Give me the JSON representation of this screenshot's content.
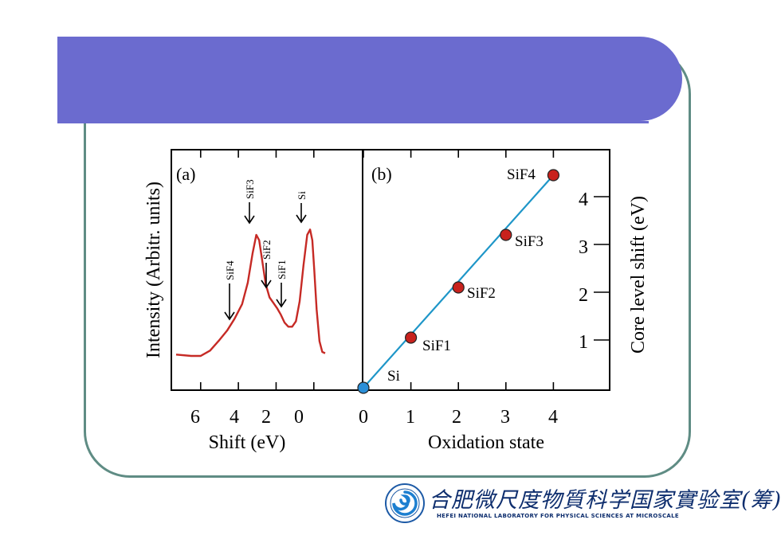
{
  "chart_data": [
    {
      "type": "line",
      "panel_label": "(a)",
      "xlabel": "Shift (eV)",
      "ylabel": "Intensity (Arbitr. units)",
      "xlim": [
        7.3,
        -0.6
      ],
      "x_reversed": true,
      "xticks": [
        "6",
        "4",
        "2",
        "0"
      ],
      "xtick_values": [
        6,
        4,
        2,
        0
      ],
      "series": [
        {
          "x": [
            7.3,
            6.5,
            6.0,
            5.5,
            5.0,
            4.6,
            4.2,
            3.8,
            3.5,
            3.25,
            3.05,
            2.9,
            2.75,
            2.55,
            2.35,
            2.15,
            1.95,
            1.75,
            1.55,
            1.35,
            1.15,
            0.95,
            0.75,
            0.55,
            0.35,
            0.2,
            0.08,
            -0.02,
            -0.15,
            -0.3,
            -0.45,
            -0.6
          ],
          "y": [
            0.04,
            0.03,
            0.03,
            0.07,
            0.15,
            0.22,
            0.31,
            0.42,
            0.58,
            0.8,
            0.94,
            0.9,
            0.76,
            0.57,
            0.47,
            0.43,
            0.39,
            0.34,
            0.28,
            0.25,
            0.25,
            0.29,
            0.44,
            0.71,
            0.94,
            0.98,
            0.9,
            0.68,
            0.38,
            0.14,
            0.06,
            0.05
          ]
        }
      ],
      "annotations": [
        {
          "label": "SiF4",
          "x": 4.5
        },
        {
          "label": "SiF3",
          "x": 3.2
        },
        {
          "label": "SiF2",
          "x": 2.0
        },
        {
          "label": "SiF1",
          "x": 1.2
        },
        {
          "label": "Si",
          "x": 0.0
        }
      ]
    },
    {
      "type": "scatter",
      "panel_label": "(b)",
      "xlabel": "Oxidation state",
      "ylabel": "Core level shift (eV)",
      "xlim": [
        -0.1,
        5.1
      ],
      "ylim": [
        0,
        5
      ],
      "xticks": [
        "0",
        "1",
        "2",
        "3",
        "4"
      ],
      "yticks": [
        "1",
        "2",
        "3",
        "4"
      ],
      "points": [
        {
          "label": "Si",
          "x": 0,
          "y": 0
        },
        {
          "label": "SiF1",
          "x": 1,
          "y": 1.05
        },
        {
          "label": "SiF2",
          "x": 2,
          "y": 2.1
        },
        {
          "label": "SiF3",
          "x": 3,
          "y": 3.2
        },
        {
          "label": "SiF4",
          "x": 4,
          "y": 4.45
        }
      ],
      "fit_line": {
        "from": [
          0,
          0
        ],
        "to": [
          4,
          4.45
        ]
      }
    }
  ],
  "colors": {
    "banner": "#6b6bcf",
    "frame_border": "#5f8c84",
    "spectrum_line": "#c62a25",
    "fit_line": "#1e96c8",
    "point_fill": "#c8221d",
    "si_point_fill": "#2a8fd8"
  },
  "logo": {
    "name_cn": "合肥微尺度物質科学国家實验室(筹)",
    "name_en": "HEFEI NATIONAL LABORATORY FOR PHYSICAL SCIENCES AT MICROSCALE"
  }
}
